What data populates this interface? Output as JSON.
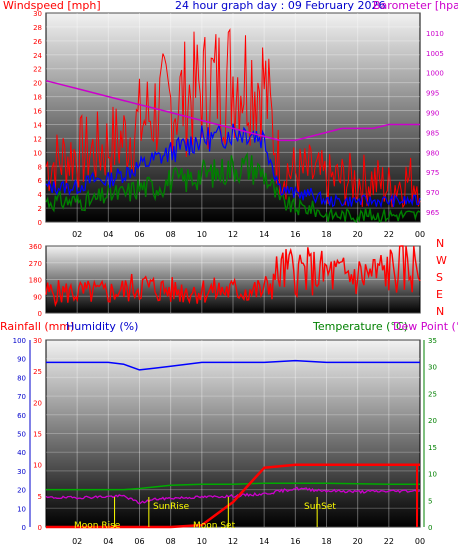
{
  "title": "24 hour graph day : 09 February 2026",
  "colors": {
    "frame": "#2a2a2a",
    "wind_avg": "#ff0000",
    "wind_gust": "#0000ff",
    "wind_low": "#008000",
    "baro": "#cc00cc",
    "dir": "#ff0000",
    "temp": "#ff0000",
    "humidity": "#0000ff",
    "dew": "#cc00cc",
    "rain": "#ff0000",
    "solar": "#00aa00",
    "annotation": "#ffff00"
  },
  "x_ticks": [
    "02",
    "04",
    "06",
    "08",
    "10",
    "12",
    "14",
    "16",
    "18",
    "20",
    "22",
    "00"
  ],
  "panels": {
    "wind": {
      "left_label": "Windspeed [mph]",
      "right_label": "Barometer [hpa]",
      "left_ticks": [
        "30",
        "28",
        "26",
        "24",
        "22",
        "20",
        "18",
        "16",
        "14",
        "12",
        "10",
        "8",
        "6",
        "4",
        "2",
        "0"
      ],
      "right_ticks": [
        "1010",
        "1005",
        "1000",
        "995",
        "990",
        "985",
        "980",
        "975",
        "970",
        "965"
      ]
    },
    "direction": {
      "ticks": [
        "360",
        "270",
        "180",
        "90",
        "0"
      ],
      "compass": [
        "N",
        "W",
        "S",
        "E",
        "N"
      ]
    },
    "lower": {
      "rain_label": "Rainfall (mm)",
      "humidity_label": "Humidity (%)",
      "temp_label": "Temperature (°C)",
      "dew_label": "Dew Point (°C)",
      "humidity_ticks": [
        "100",
        "90",
        "80",
        "70",
        "60",
        "50",
        "40",
        "30",
        "20",
        "10",
        "0"
      ],
      "rain_ticks": [
        "30",
        "25",
        "20",
        "15",
        "10",
        "5",
        "0"
      ],
      "temp_ticks": [
        "35",
        "30",
        "25",
        "20",
        "15",
        "10",
        "5",
        "0"
      ],
      "annotations": {
        "moonrise": "Moon Rise",
        "sunrise": "SunRise",
        "moonset": "Moon Set",
        "sunset": "SunSet"
      }
    }
  },
  "chart_data": [
    {
      "type": "line",
      "title": "24 hour graph day : 09 February 2026",
      "ylabel": "Windspeed [mph]",
      "y2label": "Barometer [hpa]",
      "ylim": [
        0,
        30
      ],
      "y2lim": [
        962.5,
        1015
      ],
      "x": [
        0,
        1,
        2,
        3,
        4,
        5,
        6,
        7,
        8,
        9,
        10,
        11,
        12,
        13,
        14,
        15,
        16,
        17,
        18,
        19,
        20,
        21,
        22,
        23,
        24
      ],
      "series": [
        {
          "values": [
            8,
            9,
            10,
            10,
            11,
            12,
            14,
            16,
            17,
            18,
            19,
            20,
            21,
            21,
            20,
            8,
            7,
            7,
            6,
            6,
            6,
            6,
            5,
            6,
            6
          ]
        },
        {
          "values": [
            5,
            5,
            5,
            6,
            6,
            7,
            8,
            9,
            10,
            11,
            12,
            12,
            13,
            13,
            12,
            5,
            4,
            4,
            3,
            3,
            3,
            3,
            3,
            3,
            3
          ]
        },
        {
          "values": [
            3,
            3,
            3,
            3,
            4,
            4,
            5,
            5,
            6,
            6,
            7,
            7,
            8,
            8,
            7,
            3,
            2,
            2,
            1,
            1,
            1,
            1,
            1,
            1,
            1
          ]
        },
        {
          "values": [
            998,
            997,
            996,
            995,
            994,
            993,
            992,
            991,
            990,
            989,
            988,
            987,
            986,
            985,
            984,
            983,
            983,
            984,
            985,
            986,
            986,
            986,
            987,
            987,
            987
          ]
        }
      ]
    },
    {
      "type": "line",
      "ylim": [
        0,
        360
      ],
      "x": [
        0,
        2,
        4,
        5,
        6,
        7,
        8,
        10,
        12,
        14,
        14.5,
        15,
        16,
        17,
        18,
        19,
        20,
        21,
        22,
        23,
        24
      ],
      "series": [
        {
          "values": [
            110,
            110,
            110,
            120,
            150,
            130,
            120,
            120,
            120,
            120,
            170,
            220,
            230,
            220,
            210,
            200,
            200,
            210,
            230,
            240,
            250
          ]
        }
      ]
    },
    {
      "type": "line",
      "y_humidity_lim": [
        0,
        100
      ],
      "y_rain_lim": [
        0,
        30
      ],
      "y_temp_lim": [
        0,
        35
      ],
      "x": [
        0,
        2,
        4,
        5,
        6,
        7,
        8,
        10,
        12,
        14,
        16,
        18,
        20,
        22,
        24
      ],
      "series": [
        {
          "values": [
            88,
            88,
            88,
            87,
            84,
            85,
            86,
            88,
            88,
            88,
            89,
            88,
            88,
            88,
            88
          ]
        },
        {
          "values": [
            0,
            0,
            0,
            0,
            0,
            0,
            0,
            0.3,
            4,
            9.5,
            10,
            10,
            10,
            10,
            10
          ]
        },
        {
          "values": [
            7,
            7,
            7,
            7,
            7.2,
            7.5,
            7.8,
            8,
            8,
            8.2,
            8.2,
            8.2,
            8.1,
            8,
            8
          ]
        },
        {
          "values": [
            5.5,
            5.5,
            5.7,
            5.8,
            4.5,
            5.2,
            5.4,
            5.6,
            5.8,
            6.2,
            7.2,
            6.8,
            6.6,
            6.7,
            6.8
          ]
        }
      ]
    }
  ]
}
